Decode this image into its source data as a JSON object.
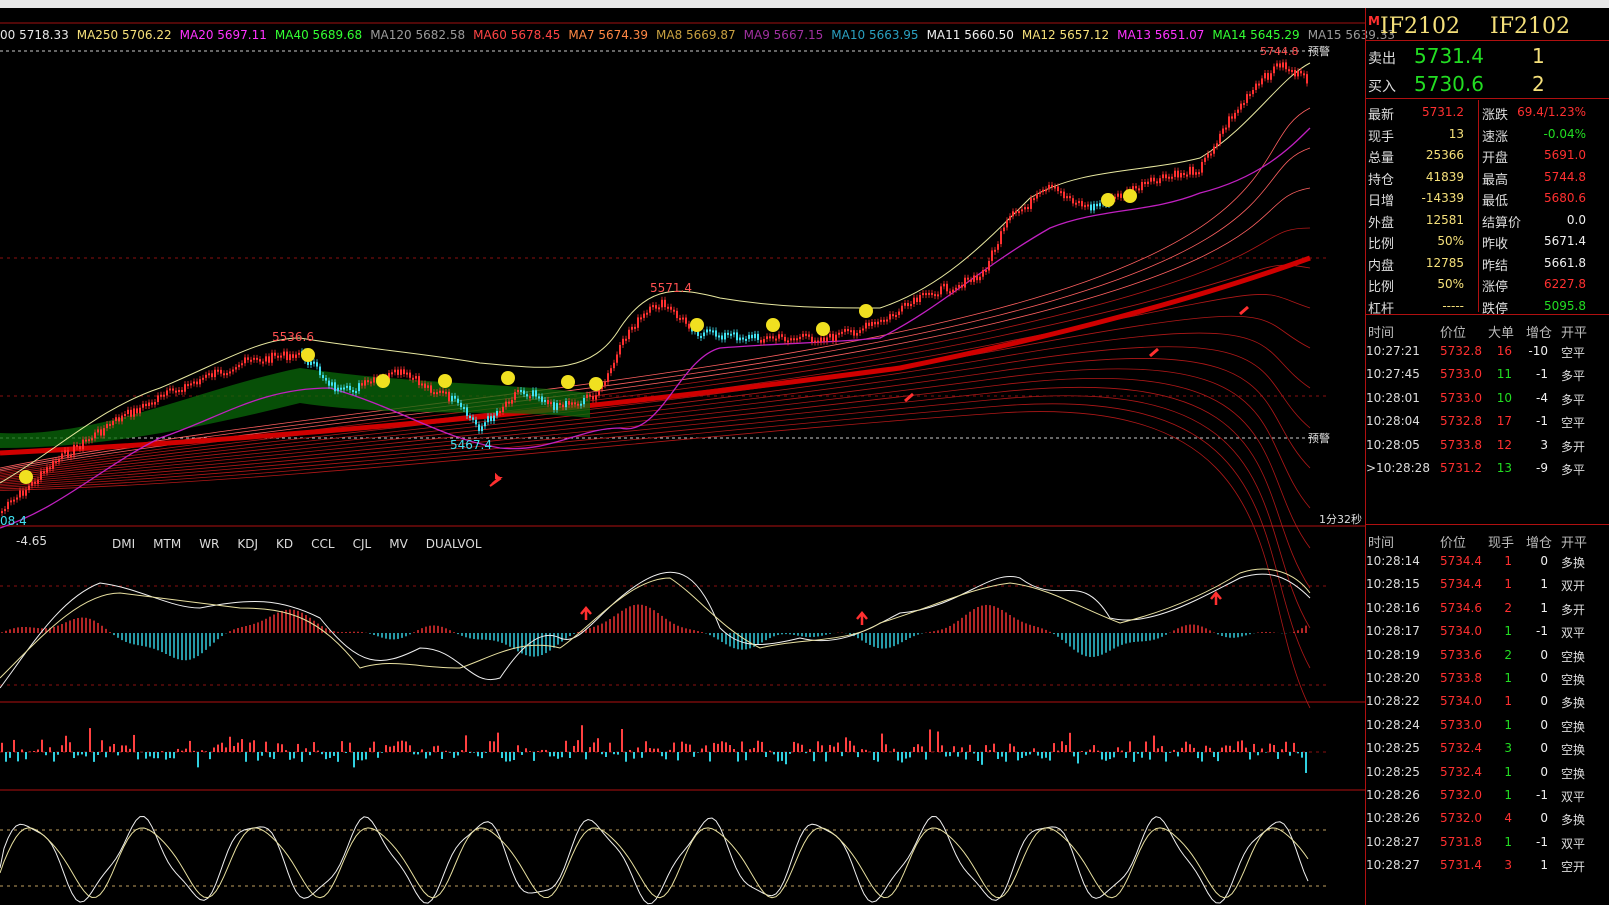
{
  "ma_legend": [
    {
      "label": "00 5718.33",
      "color": "#e8e8e8"
    },
    {
      "label": "MA250 5706.22",
      "color": "#f5e07a"
    },
    {
      "label": "MA20 5697.11",
      "color": "#ff33ff"
    },
    {
      "label": "MA40 5689.68",
      "color": "#33ff33"
    },
    {
      "label": "MA120 5682.58",
      "color": "#9a9a9a"
    },
    {
      "label": "MA60 5678.45",
      "color": "#ff4444"
    },
    {
      "label": "MA7 5674.39",
      "color": "#ff8844"
    },
    {
      "label": "MA8 5669.87",
      "color": "#c8a040"
    },
    {
      "label": "MA9 5667.15",
      "color": "#a030a0"
    },
    {
      "label": "MA10 5663.95",
      "color": "#2aa0c0"
    },
    {
      "label": "MA11 5660.50",
      "color": "#f0f0f0"
    },
    {
      "label": "MA12 5657.12",
      "color": "#f5e07a"
    },
    {
      "label": "MA13 5651.07",
      "color": "#ff33ff"
    },
    {
      "label": "MA14 5645.29",
      "color": "#33ff33"
    },
    {
      "label": "MA15 5639.33",
      "color": "#9a9a9a"
    }
  ],
  "chart_labels": {
    "warn_top": "预警",
    "warn_bottom": "预警",
    "hi_1": "5536.6",
    "hi_2": "5571.4",
    "lo_1": "5467.4",
    "left_low": "08.4",
    "top_price": "5744.8",
    "timer": "1分32秒",
    "ind_value": "-4.65"
  },
  "indicator_tabs": [
    "DMI",
    "MTM",
    "WR",
    "KDJ",
    "KD",
    "CCL",
    "CJL",
    "MV",
    "DUALVOL"
  ],
  "panel": {
    "mark": "M",
    "symbol_left": "IF2102",
    "symbol_right": "IF2102",
    "sell": {
      "label": "卖出",
      "price": "5731.4",
      "volume": "1"
    },
    "buy": {
      "label": "买入",
      "price": "5730.6",
      "volume": "2"
    },
    "stats_left": [
      {
        "k": "最新",
        "v": "5731.2",
        "c": "#ff3030"
      },
      {
        "k": "现手",
        "v": "13",
        "c": "#f5e07a"
      },
      {
        "k": "总量",
        "v": "25366",
        "c": "#f5e07a"
      },
      {
        "k": "持仓",
        "v": "41839",
        "c": "#f5e07a"
      },
      {
        "k": "日增",
        "v": "-14339",
        "c": "#f5e07a"
      },
      {
        "k": "外盘",
        "v": "12581",
        "c": "#f5e07a"
      },
      {
        "k": "比例",
        "v": "50%",
        "c": "#f5e07a"
      },
      {
        "k": "内盘",
        "v": "12785",
        "c": "#f5e07a"
      },
      {
        "k": "比例",
        "v": "50%",
        "c": "#f5e07a"
      },
      {
        "k": "杠杆",
        "v": "-----",
        "c": "#f5e07a"
      }
    ],
    "stats_right": [
      {
        "k": "涨跌",
        "v": "69.4/1.23%",
        "c": "#ff3030"
      },
      {
        "k": "速涨",
        "v": "-0.04%",
        "c": "#22dd22"
      },
      {
        "k": "开盘",
        "v": "5691.0",
        "c": "#ff3030"
      },
      {
        "k": "最高",
        "v": "5744.8",
        "c": "#ff3030"
      },
      {
        "k": "最低",
        "v": "5680.6",
        "c": "#ff3030"
      },
      {
        "k": "结算价",
        "v": "0.0",
        "c": "#f0f0f0"
      },
      {
        "k": "昨收",
        "v": "5671.4",
        "c": "#f0f0f0"
      },
      {
        "k": "昨结",
        "v": "5661.8",
        "c": "#f0f0f0"
      },
      {
        "k": "涨停",
        "v": "6227.8",
        "c": "#ff3030"
      },
      {
        "k": "跌停",
        "v": "5095.8",
        "c": "#22dd22"
      }
    ],
    "big_head": [
      "时间",
      "价位",
      "大单",
      "增仓",
      "开平"
    ],
    "big_orders": [
      {
        "time": "10:27:21",
        "price": "5732.8",
        "qty": "16",
        "chg": "-10",
        "type": "空平",
        "qc": "#ff3030"
      },
      {
        "time": "10:27:45",
        "price": "5733.0",
        "qty": "11",
        "chg": "-1",
        "type": "多平",
        "qc": "#22dd22"
      },
      {
        "time": "10:28:01",
        "price": "5733.0",
        "qty": "10",
        "chg": "-4",
        "type": "多平",
        "qc": "#22dd22"
      },
      {
        "time": "10:28:04",
        "price": "5732.8",
        "qty": "17",
        "chg": "-1",
        "type": "空平",
        "qc": "#ff3030"
      },
      {
        "time": "10:28:05",
        "price": "5733.8",
        "qty": "12",
        "chg": "3",
        "type": "多开",
        "qc": "#ff3030"
      },
      {
        "time": ">10:28:28",
        "price": "5731.2",
        "qty": "13",
        "chg": "-9",
        "type": "多平",
        "qc": "#22dd22"
      }
    ],
    "tick_head": [
      "时间",
      "价位",
      "现手",
      "增仓",
      "开平"
    ],
    "ticks": [
      {
        "time": "10:28:14",
        "price": "5734.4",
        "qty": "1",
        "chg": "0",
        "type": "多换"
      },
      {
        "time": "10:28:15",
        "price": "5734.4",
        "qty": "1",
        "chg": "1",
        "type": "双开"
      },
      {
        "time": "10:28:16",
        "price": "5734.6",
        "qty": "2",
        "chg": "1",
        "type": "多开"
      },
      {
        "time": "10:28:17",
        "price": "5734.0",
        "qty": "1",
        "chg": "-1",
        "type": "双平"
      },
      {
        "time": "10:28:19",
        "price": "5733.6",
        "qty": "2",
        "chg": "0",
        "type": "空换"
      },
      {
        "time": "10:28:20",
        "price": "5733.8",
        "qty": "1",
        "chg": "0",
        "type": "空换"
      },
      {
        "time": "10:28:22",
        "price": "5734.0",
        "qty": "1",
        "chg": "0",
        "type": "多换"
      },
      {
        "time": "10:28:24",
        "price": "5733.0",
        "qty": "1",
        "chg": "0",
        "type": "空换"
      },
      {
        "time": "10:28:25",
        "price": "5732.4",
        "qty": "3",
        "chg": "0",
        "type": "空换"
      },
      {
        "time": "10:28:25",
        "price": "5732.4",
        "qty": "1",
        "chg": "0",
        "type": "空换"
      },
      {
        "time": "10:28:26",
        "price": "5732.0",
        "qty": "1",
        "chg": "-1",
        "type": "双平"
      },
      {
        "time": "10:28:26",
        "price": "5732.0",
        "qty": "4",
        "chg": "0",
        "type": "多换"
      },
      {
        "time": "10:28:27",
        "price": "5731.8",
        "qty": "1",
        "chg": "-1",
        "type": "双平"
      },
      {
        "time": "10:28:27",
        "price": "5731.4",
        "qty": "3",
        "chg": "1",
        "type": "空开"
      }
    ]
  }
}
